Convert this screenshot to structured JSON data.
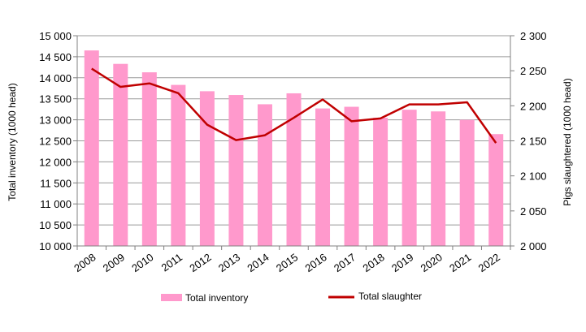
{
  "chart_data": {
    "type": "bar",
    "categories": [
      "2008",
      "2009",
      "2010",
      "2011",
      "2012",
      "2013",
      "2014",
      "2015",
      "2016",
      "2017",
      "2018",
      "2019",
      "2020",
      "2021",
      "2022"
    ],
    "series": [
      {
        "name": "Total inventory",
        "type": "bar",
        "axis": "left",
        "color": "#ff99cc",
        "values": [
          14650,
          14330,
          14130,
          13830,
          13680,
          13590,
          13370,
          13630,
          13270,
          13310,
          13050,
          13240,
          13200,
          13000,
          12660
        ]
      },
      {
        "name": "Total slaughter",
        "type": "line",
        "axis": "right",
        "color": "#c00000",
        "values": [
          2253,
          2227,
          2232,
          2218,
          2173,
          2151,
          2158,
          2183,
          2209,
          2178,
          2182,
          2202,
          2202,
          2205,
          2147
        ]
      }
    ],
    "ylabel": "Total inventory (1000 head)",
    "y2label": "Pigs slaughtered (1000 head)",
    "ylim": [
      10000,
      15000
    ],
    "y2lim": [
      2000,
      2300
    ],
    "yticks": [
      "10 000",
      "10 500",
      "11 000",
      "11 500",
      "12 000",
      "12 500",
      "13 000",
      "13 500",
      "14 000",
      "14 500",
      "15 000"
    ],
    "y2ticks": [
      "2 000",
      "2 050",
      "2 100",
      "2 150",
      "2 200",
      "2 250",
      "2 300"
    ],
    "grid": true,
    "legend": "bottom"
  }
}
